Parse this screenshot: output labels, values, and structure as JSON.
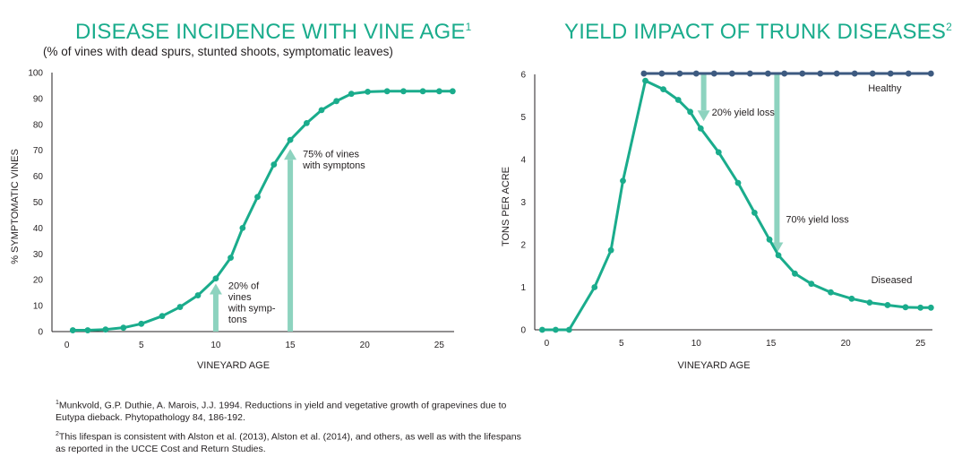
{
  "chart_data": [
    {
      "type": "line",
      "title": "DISEASE INCIDENCE WITH VINE AGE",
      "title_sup": "1",
      "subtitle": "(% of vines with dead spurs, stunted shoots, symptomatic leaves)",
      "xlabel": "VINEYARD AGE",
      "ylabel": "% SYMPTOMATIC VINES",
      "xlim": [
        -1,
        26
      ],
      "ylim": [
        0,
        100
      ],
      "xticks": [
        0,
        5,
        10,
        15,
        20,
        25
      ],
      "yticks": [
        0,
        10,
        20,
        30,
        40,
        50,
        60,
        70,
        80,
        90,
        100
      ],
      "grid": false,
      "color": "#1aac8c",
      "series": [
        {
          "x": [
            0.4,
            1.4,
            2.6,
            3.8,
            5,
            6.4,
            7.6,
            8.8,
            10,
            11,
            11.8,
            12.8,
            13.9,
            15,
            16.1,
            17.1,
            18.1,
            19.1,
            20.2,
            21.5,
            22.6,
            23.9,
            25,
            25.9
          ],
          "values": [
            0.5,
            0.5,
            0.8,
            1.5,
            3,
            6,
            9.5,
            14,
            20.5,
            28.5,
            40,
            52,
            64.5,
            74,
            80.5,
            85.5,
            89,
            91.8,
            92.6,
            92.8,
            92.8,
            92.8,
            92.8,
            92.8
          ]
        }
      ],
      "annotations": [
        {
          "x": 10,
          "from": 0,
          "to": 18.5,
          "lines": [
            "20% of",
            "vines",
            "with symp-",
            "tons"
          ]
        },
        {
          "x": 15,
          "from": 0,
          "to": 70.5,
          "lines": [
            "75% of vines",
            "with symptons"
          ]
        }
      ]
    },
    {
      "type": "line",
      "title": "YIELD IMPACT OF TRUNK DISEASES",
      "title_sup": "2",
      "xlabel": "VINEYARD AGE",
      "ylabel": "TONS PER ACRE",
      "xlim": [
        -0.8,
        25.8
      ],
      "ylim": [
        0,
        6
      ],
      "xticks": [
        0,
        5,
        10,
        15,
        20,
        25
      ],
      "yticks": [
        0,
        1,
        2,
        3,
        4,
        5,
        6
      ],
      "grid": false,
      "series": [
        {
          "name": "Healthy",
          "color": "#3d5a80",
          "x": [
            6.5,
            7.7,
            8.9,
            10,
            11.2,
            12.4,
            13.6,
            14.8,
            15.9,
            17.1,
            18.3,
            19.4,
            20.6,
            21.8,
            23,
            24.2,
            25.7
          ],
          "values": [
            6.02,
            6.02,
            6.02,
            6.02,
            6.02,
            6.02,
            6.02,
            6.02,
            6.02,
            6.02,
            6.02,
            6.02,
            6.02,
            6.02,
            6.02,
            6.02,
            6.02
          ]
        },
        {
          "name": "Diseased",
          "color": "#1aac8c",
          "x": [
            -0.3,
            0.6,
            1.5,
            3.2,
            4.3,
            5.1,
            6.6,
            7.8,
            8.8,
            9.6,
            10.3,
            11.5,
            12.8,
            13.9,
            14.9,
            15.5,
            16.6,
            17.7,
            19,
            20.4,
            21.6,
            22.8,
            24,
            25,
            25.7
          ],
          "values": [
            0,
            0,
            0,
            1,
            1.87,
            3.5,
            5.85,
            5.65,
            5.4,
            5.12,
            4.73,
            4.17,
            3.45,
            2.75,
            2.12,
            1.75,
            1.32,
            1.08,
            0.88,
            0.73,
            0.64,
            0.58,
            0.53,
            0.52,
            0.52
          ]
        }
      ],
      "annotations": [
        {
          "x": 10.5,
          "from": 6.02,
          "to": 4.9,
          "label": "20% yield loss"
        },
        {
          "x": 15.4,
          "from": 6.02,
          "to": 1.8,
          "label": "70% yield loss"
        }
      ]
    }
  ],
  "footnotes": [
    {
      "sup": "1",
      "text": "Munkvold, G.P. Duthie, A. Marois, J.J. 1994. Reductions in yield and vegetative growth of grapevines due to Eutypa dieback. Phytopathology 84, 186-192."
    },
    {
      "sup": "2",
      "text": "This lifespan is consistent with Alston et al. (2013), Alston et al. (2014), and others, as well as with the lifespans as reported in the UCCE Cost and Return Studies."
    }
  ]
}
